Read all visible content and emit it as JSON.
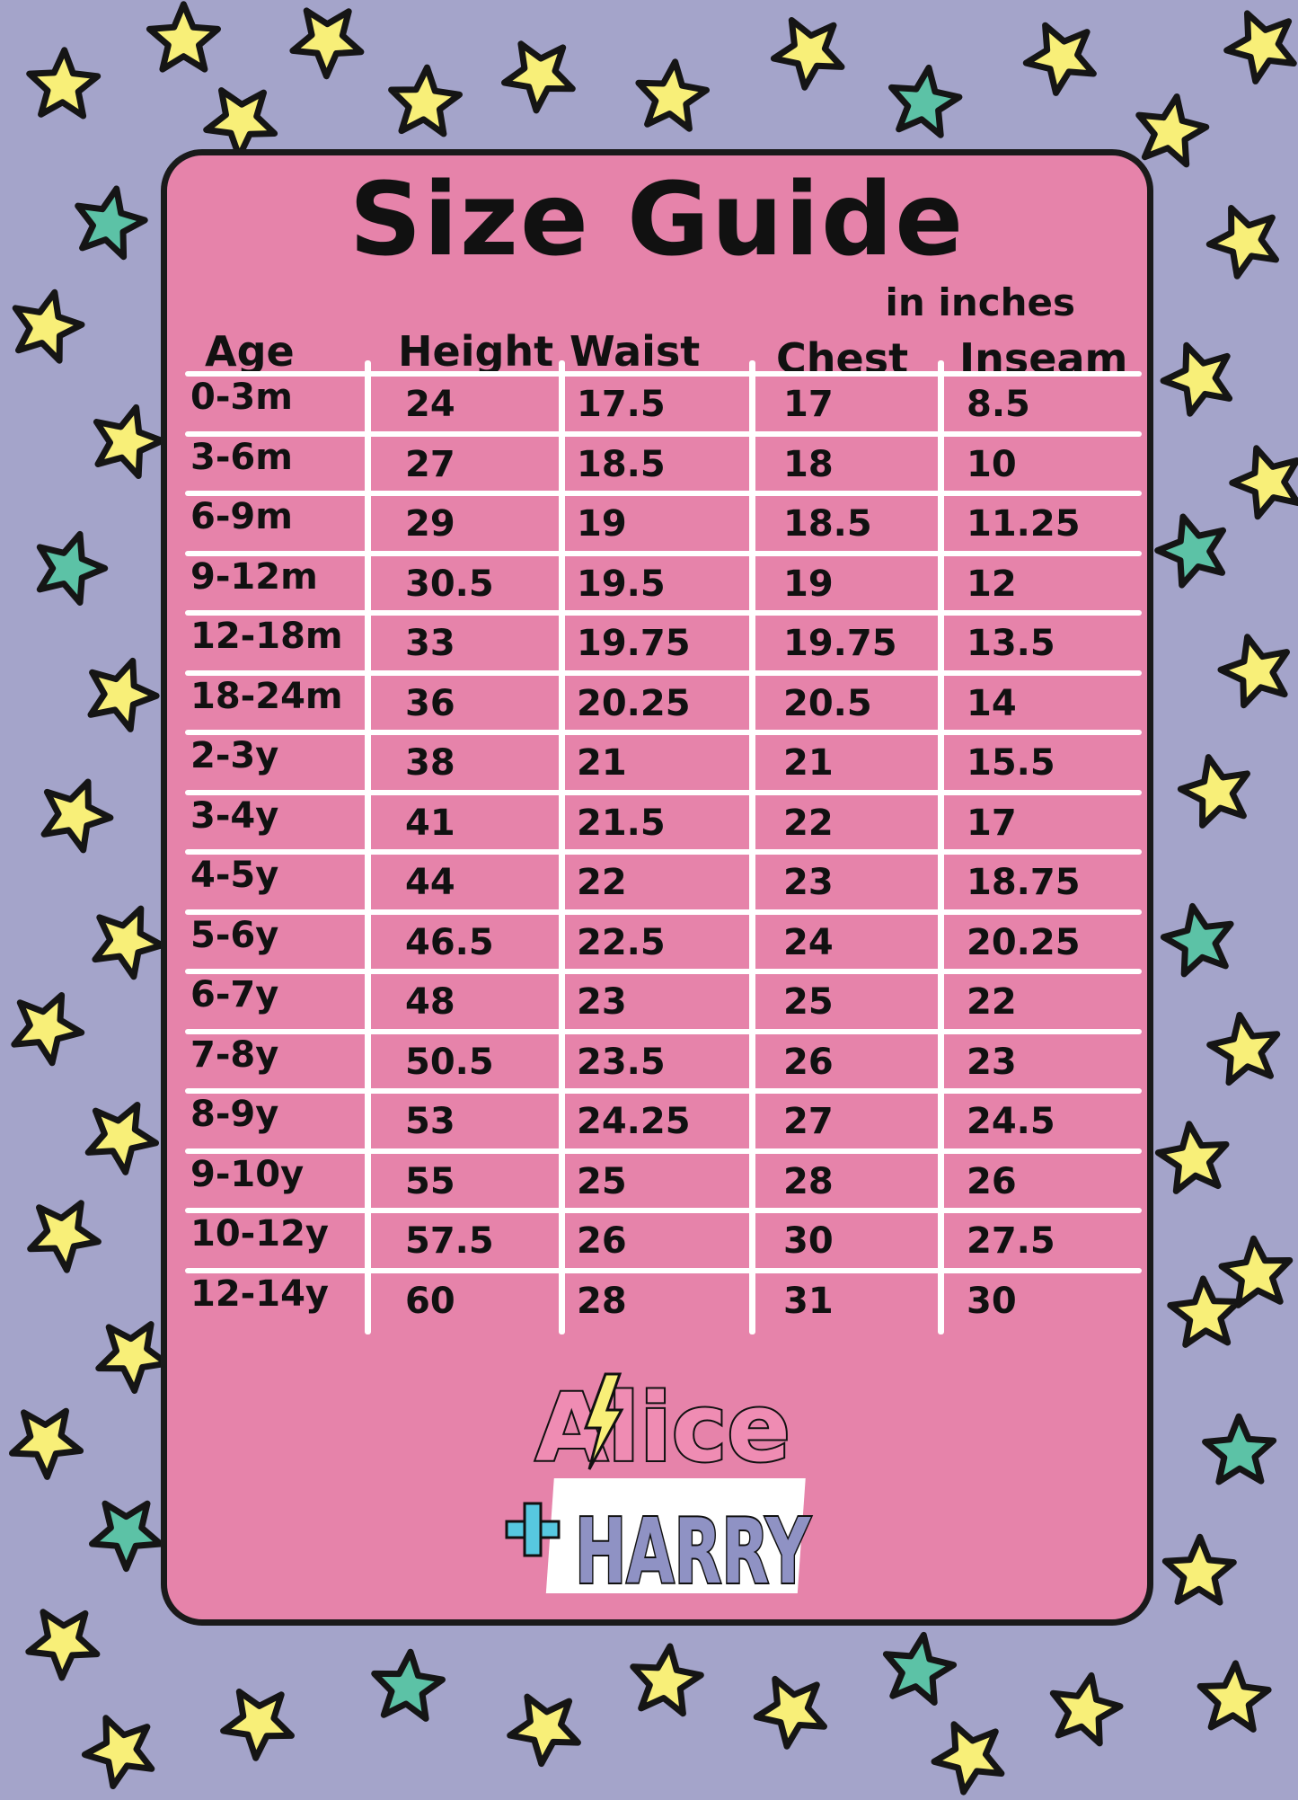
{
  "title": "Size Guide",
  "subtitle": "in inches",
  "colors": {
    "background": "#a4a4ca",
    "card": "#e683aa",
    "star_yellow": "#f8ef78",
    "star_teal": "#5cc2a6",
    "grid_lines": "#ffffff"
  },
  "table": {
    "headers": [
      "Age",
      "Height",
      "Waist",
      "Chest",
      "Inseam"
    ],
    "rows": [
      [
        "0-3m",
        "24",
        "17.5",
        "17",
        "8.5"
      ],
      [
        "3-6m",
        "27",
        "18.5",
        "18",
        "10"
      ],
      [
        "6-9m",
        "29",
        "19",
        "18.5",
        "11.25"
      ],
      [
        "9-12m",
        "30.5",
        "19.5",
        "19",
        "12"
      ],
      [
        "12-18m",
        "33",
        "19.75",
        "19.75",
        "13.5"
      ],
      [
        "18-24m",
        "36",
        "20.25",
        "20.5",
        "14"
      ],
      [
        "2-3y",
        "38",
        "21",
        "21",
        "15.5"
      ],
      [
        "3-4y",
        "41",
        "21.5",
        "22",
        "17"
      ],
      [
        "4-5y",
        "44",
        "22",
        "23",
        "18.75"
      ],
      [
        "5-6y",
        "46.5",
        "22.5",
        "24",
        "20.25"
      ],
      [
        "6-7y",
        "48",
        "23",
        "25",
        "22"
      ],
      [
        "7-8y",
        "50.5",
        "23.5",
        "26",
        "23"
      ],
      [
        "8-9y",
        "53",
        "24.25",
        "27",
        "24.5"
      ],
      [
        "9-10y",
        "55",
        "25",
        "28",
        "26"
      ],
      [
        "10-12y",
        "57.5",
        "26",
        "30",
        "27.5"
      ],
      [
        "12-14y",
        "60",
        "28",
        "31",
        "30"
      ]
    ]
  },
  "logo": {
    "line1": "Alice",
    "line2": "+HARRY"
  }
}
